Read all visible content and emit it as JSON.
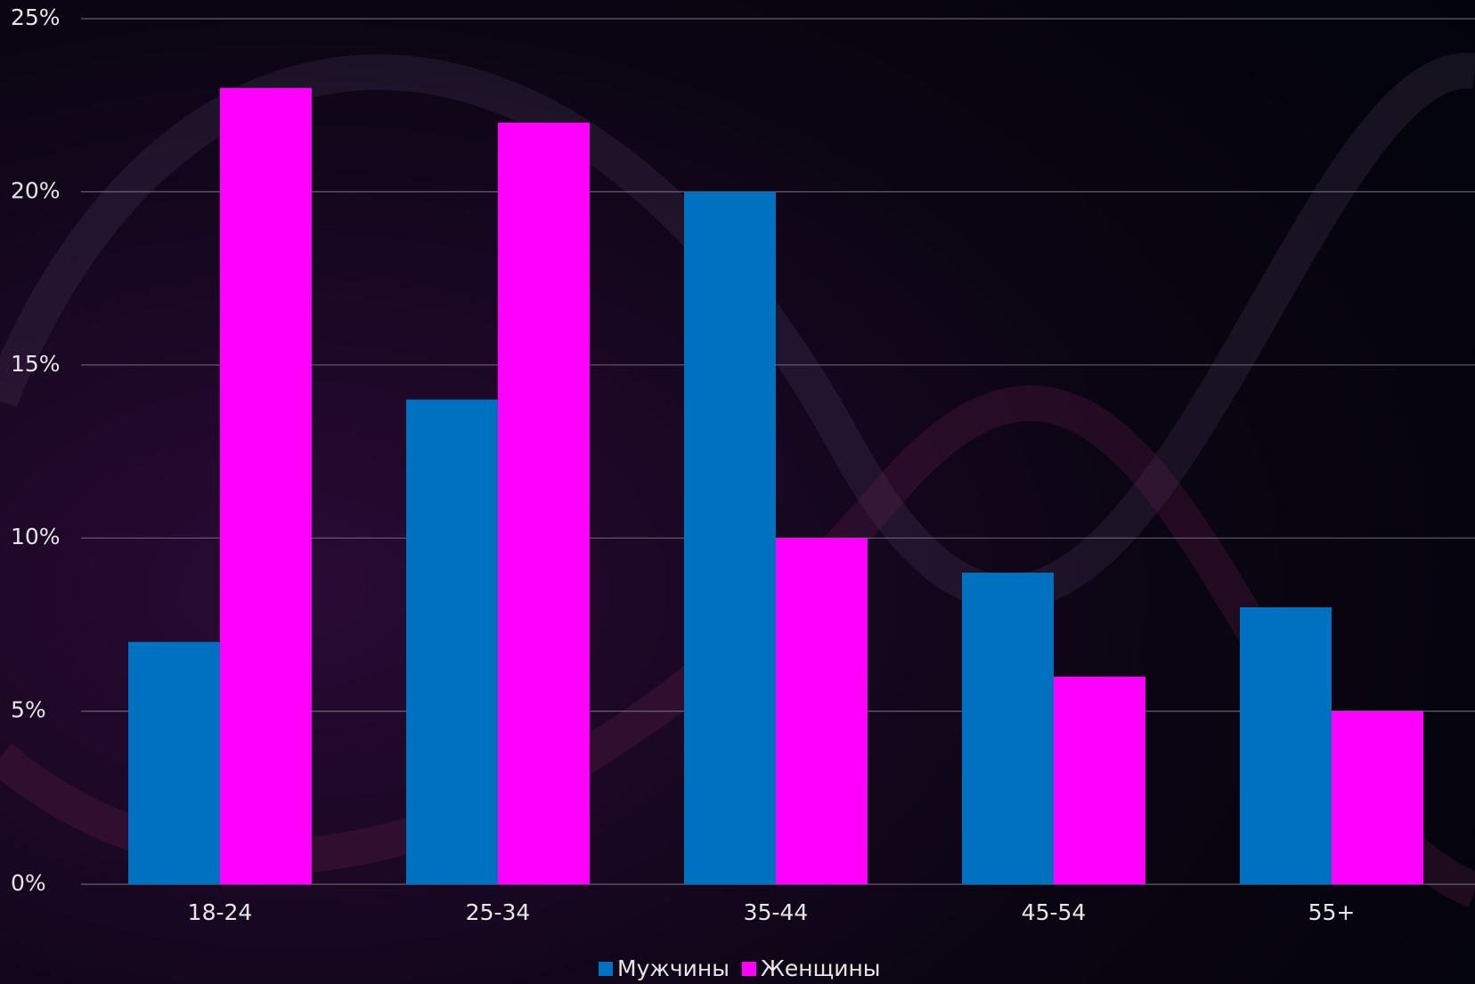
{
  "chart_data": {
    "type": "bar",
    "categories": [
      "18-24",
      "25-34",
      "35-44",
      "45-54",
      "55+"
    ],
    "series": [
      {
        "name": "Мужчины",
        "color": "#0070c0",
        "values": [
          7,
          14,
          20,
          9,
          8
        ]
      },
      {
        "name": "Женщины",
        "color": "#ff00ff",
        "values": [
          23,
          22,
          10,
          6,
          5
        ]
      }
    ],
    "ylim": [
      0,
      25
    ],
    "yticks": [
      {
        "value": 0,
        "label": "0%"
      },
      {
        "value": 5,
        "label": "5%"
      },
      {
        "value": 10,
        "label": "10%"
      },
      {
        "value": 15,
        "label": "15%"
      },
      {
        "value": 20,
        "label": "20%"
      },
      {
        "value": 25,
        "label": "25%"
      }
    ],
    "grid": true,
    "legend": "bottom"
  }
}
